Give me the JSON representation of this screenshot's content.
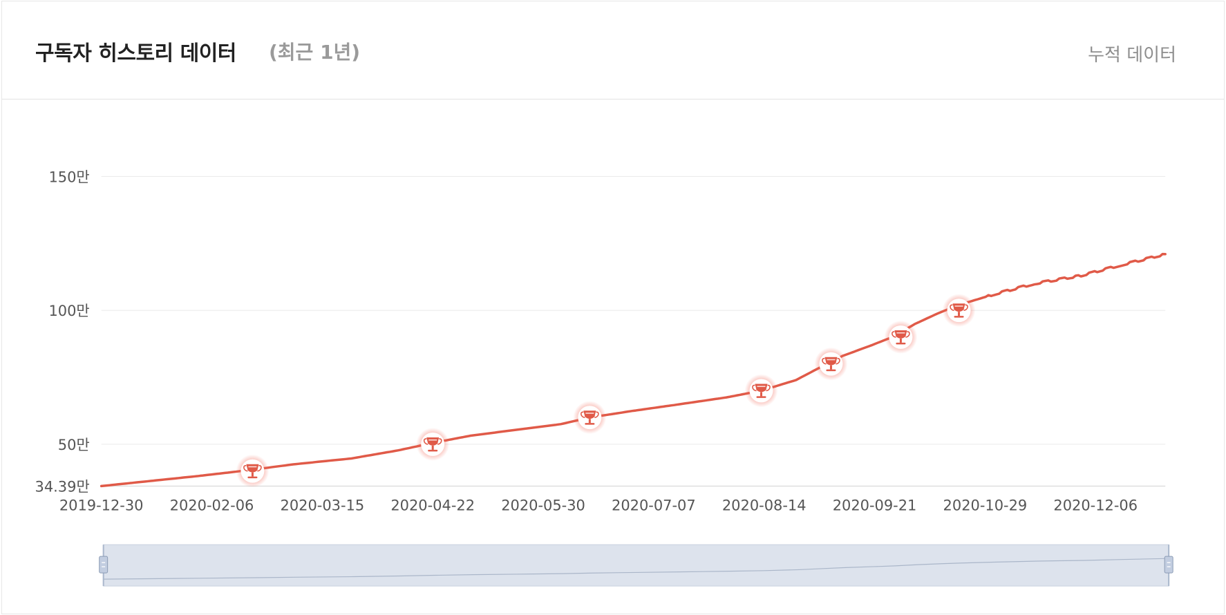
{
  "header": {
    "title": "구독자 히스토리 데이터",
    "subtitle": "(최근 1년)",
    "cumulative_label": "누적 데이터"
  },
  "colors": {
    "line": "#e05a48",
    "grid": "#ececec",
    "axis_text": "#555555",
    "navigator_fill": "#dde3ed",
    "navigator_handle": "#a9b7cc"
  },
  "chart_data": {
    "type": "line",
    "title": "구독자 히스토리 데이터",
    "x_axis": {
      "type": "date",
      "range": [
        "2019-12-30",
        "2020-12-30"
      ],
      "ticks": [
        "2019-12-30",
        "2020-02-06",
        "2020-03-15",
        "2020-04-22",
        "2020-05-30",
        "2020-07-07",
        "2020-08-14",
        "2020-09-21",
        "2020-10-29",
        "2020-12-06"
      ]
    },
    "y_axis": {
      "min": 343900,
      "max": 1500000,
      "ticks": [
        {
          "value": 343900,
          "label": "34.39만"
        },
        {
          "value": 500000,
          "label": "50만"
        },
        {
          "value": 1000000,
          "label": "100만"
        },
        {
          "value": 1500000,
          "label": "150만"
        }
      ]
    },
    "grid": true,
    "series": [
      {
        "points": [
          {
            "x": "2019-12-30",
            "y": 343900
          },
          {
            "x": "2020-01-15",
            "y": 362000
          },
          {
            "x": "2020-02-01",
            "y": 381000
          },
          {
            "x": "2020-02-20",
            "y": 405000
          },
          {
            "x": "2020-03-05",
            "y": 425000
          },
          {
            "x": "2020-03-25",
            "y": 447000
          },
          {
            "x": "2020-04-10",
            "y": 477000
          },
          {
            "x": "2020-04-22",
            "y": 505000
          },
          {
            "x": "2020-05-05",
            "y": 532000
          },
          {
            "x": "2020-05-20",
            "y": 553000
          },
          {
            "x": "2020-06-05",
            "y": 575000
          },
          {
            "x": "2020-06-15",
            "y": 600000
          },
          {
            "x": "2020-06-30",
            "y": 625000
          },
          {
            "x": "2020-07-15",
            "y": 648000
          },
          {
            "x": "2020-08-01",
            "y": 675000
          },
          {
            "x": "2020-08-13",
            "y": 700000
          },
          {
            "x": "2020-08-25",
            "y": 740000
          },
          {
            "x": "2020-09-01",
            "y": 780000
          },
          {
            "x": "2020-09-10",
            "y": 830000
          },
          {
            "x": "2020-09-20",
            "y": 870000
          },
          {
            "x": "2020-09-27",
            "y": 900000
          },
          {
            "x": "2020-10-05",
            "y": 950000
          },
          {
            "x": "2020-10-13",
            "y": 990000
          },
          {
            "x": "2020-10-20",
            "y": 1020000
          },
          {
            "x": "2020-11-01",
            "y": 1060000
          },
          {
            "x": "2020-11-15",
            "y": 1100000
          },
          {
            "x": "2020-12-01",
            "y": 1130000
          },
          {
            "x": "2020-12-15",
            "y": 1170000
          },
          {
            "x": "2020-12-30",
            "y": 1210000
          }
        ]
      }
    ],
    "milestones": [
      {
        "x": "2020-02-20",
        "y": 400000
      },
      {
        "x": "2020-04-22",
        "y": 500000
      },
      {
        "x": "2020-06-15",
        "y": 600000
      },
      {
        "x": "2020-08-13",
        "y": 700000
      },
      {
        "x": "2020-09-06",
        "y": 800000
      },
      {
        "x": "2020-09-30",
        "y": 900000
      },
      {
        "x": "2020-10-20",
        "y": 1000000
      }
    ],
    "navigator": {
      "range": [
        "2019-12-30",
        "2020-12-30"
      ]
    }
  }
}
